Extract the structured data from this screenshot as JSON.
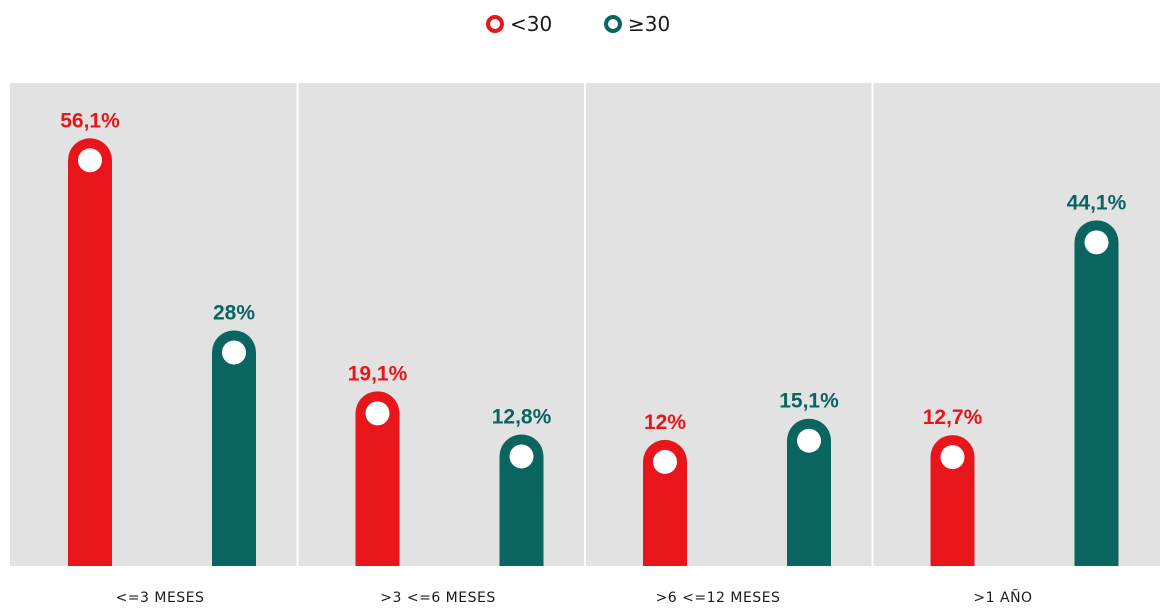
{
  "chart_data": {
    "type": "bar",
    "categories": [
      "<=3 MESES",
      ">3 <=6 MESES",
      ">6 <=12 MESES",
      ">1 AÑO"
    ],
    "series": [
      {
        "name": "<30",
        "color": "#e8161a",
        "values": [
          56.1,
          19.1,
          12.0,
          12.7
        ],
        "labels": [
          "56,1%",
          "19,1%",
          "12%",
          "12,7%"
        ]
      },
      {
        "name": "≥30",
        "color": "#0a6460",
        "values": [
          28.0,
          12.8,
          15.1,
          44.1
        ],
        "labels": [
          "28%",
          "12,8%",
          "15,1%",
          "44,1%"
        ]
      }
    ],
    "title": "",
    "xlabel": "",
    "ylabel": "",
    "grid": false,
    "legend_position": "top-center",
    "plot_background": "#e2e2e2"
  }
}
